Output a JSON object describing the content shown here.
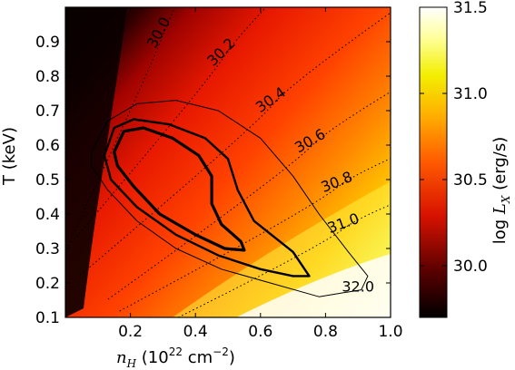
{
  "chart_data": {
    "type": "heatmap",
    "title": "",
    "xlabel": "n_H  (10^22 cm^-2)",
    "ylabel": "T (keV)",
    "colorbar_label": "log L_X  (erg/s)",
    "xlim": [
      0.0,
      1.0
    ],
    "ylim": [
      0.1,
      1.0
    ],
    "x_ticks": [
      "0.2",
      "0.4",
      "0.6",
      "0.8",
      "1.0"
    ],
    "y_ticks": [
      "0.1",
      "0.2",
      "0.3",
      "0.4",
      "0.5",
      "0.6",
      "0.7",
      "0.8",
      "0.9"
    ],
    "colorbar_range": [
      29.7,
      31.5
    ],
    "colorbar_ticks": [
      "30.0",
      "30.5",
      "31.0",
      "31.5"
    ],
    "colormap": [
      "#000000",
      "#7a0000",
      "#e61b00",
      "#ff6a00",
      "#ffb000",
      "#f4f000",
      "#ffffb0",
      "#ffffff"
    ],
    "dotted_contour_labels": [
      {
        "text": "30.0",
        "x": 0.3,
        "y": 0.92,
        "rotate": -62
      },
      {
        "text": "30.2",
        "x": 0.49,
        "y": 0.86,
        "rotate": -45
      },
      {
        "text": "30.4",
        "x": 0.64,
        "y": 0.72,
        "rotate": -35
      },
      {
        "text": "30.6",
        "x": 0.76,
        "y": 0.6,
        "rotate": -30
      },
      {
        "text": "30.8",
        "x": 0.84,
        "y": 0.48,
        "rotate": -22
      },
      {
        "text": "31.0",
        "x": 0.86,
        "y": 0.36,
        "rotate": -20
      },
      {
        "text": "32.0",
        "x": 0.9,
        "y": 0.175,
        "rotate": 0
      }
    ],
    "confidence_contours": [
      {
        "name": "",
        "width": 3.2,
        "points": [
          [
            0.15,
            0.58
          ],
          [
            0.18,
            0.64
          ],
          [
            0.24,
            0.65
          ],
          [
            0.33,
            0.62
          ],
          [
            0.41,
            0.57
          ],
          [
            0.45,
            0.51
          ],
          [
            0.45,
            0.43
          ],
          [
            0.48,
            0.37
          ],
          [
            0.54,
            0.32
          ],
          [
            0.55,
            0.295
          ],
          [
            0.49,
            0.3
          ],
          [
            0.4,
            0.34
          ],
          [
            0.29,
            0.4
          ],
          [
            0.21,
            0.48
          ],
          [
            0.16,
            0.54
          ],
          [
            0.15,
            0.58
          ]
        ]
      },
      {
        "name": "",
        "width": 2.4,
        "points": [
          [
            0.12,
            0.57
          ],
          [
            0.15,
            0.65
          ],
          [
            0.21,
            0.675
          ],
          [
            0.32,
            0.66
          ],
          [
            0.43,
            0.62
          ],
          [
            0.5,
            0.56
          ],
          [
            0.53,
            0.47
          ],
          [
            0.58,
            0.38
          ],
          [
            0.7,
            0.29
          ],
          [
            0.75,
            0.22
          ],
          [
            0.7,
            0.22
          ],
          [
            0.6,
            0.24
          ],
          [
            0.47,
            0.28
          ],
          [
            0.34,
            0.34
          ],
          [
            0.22,
            0.42
          ],
          [
            0.14,
            0.5
          ],
          [
            0.12,
            0.57
          ]
        ]
      },
      {
        "name": "",
        "width": 1.0,
        "points": [
          [
            0.08,
            0.58
          ],
          [
            0.13,
            0.67
          ],
          [
            0.22,
            0.72
          ],
          [
            0.34,
            0.73
          ],
          [
            0.47,
            0.7
          ],
          [
            0.6,
            0.62
          ],
          [
            0.7,
            0.51
          ],
          [
            0.78,
            0.4
          ],
          [
            0.87,
            0.29
          ],
          [
            0.93,
            0.22
          ],
          [
            0.91,
            0.18
          ],
          [
            0.78,
            0.16
          ],
          [
            0.63,
            0.2
          ],
          [
            0.48,
            0.24
          ],
          [
            0.34,
            0.3
          ],
          [
            0.22,
            0.38
          ],
          [
            0.13,
            0.47
          ],
          [
            0.08,
            0.54
          ],
          [
            0.08,
            0.58
          ]
        ]
      }
    ]
  }
}
